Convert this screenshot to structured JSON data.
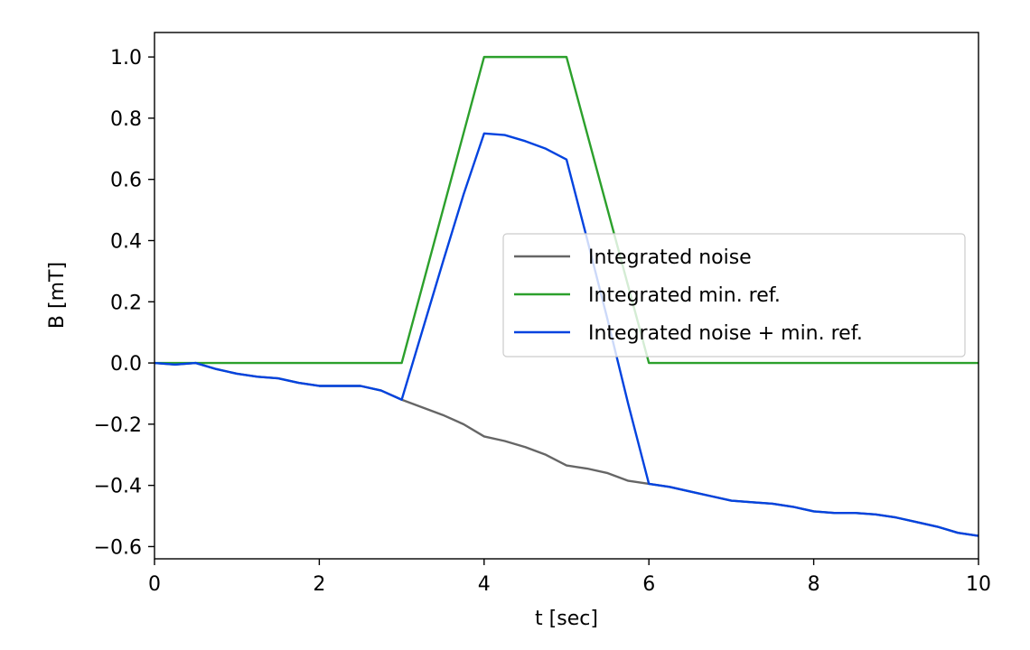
{
  "chart_data": {
    "type": "line",
    "title": "",
    "xlabel": "t [sec]",
    "ylabel": "B [mT]",
    "xlim": [
      0,
      10
    ],
    "ylim": [
      -0.64,
      1.08
    ],
    "xticks": [
      0,
      2,
      4,
      6,
      8,
      10
    ],
    "xtick_labels": [
      "0",
      "2",
      "4",
      "6",
      "8",
      "10"
    ],
    "yticks": [
      -0.6,
      -0.4,
      -0.2,
      0.0,
      0.2,
      0.4,
      0.6,
      0.8,
      1.0
    ],
    "ytick_labels": [
      "−0.6",
      "−0.4",
      "−0.2",
      "0.0",
      "0.2",
      "0.4",
      "0.6",
      "0.8",
      "1.0"
    ],
    "grid": false,
    "legend_position": "center-right",
    "series": [
      {
        "name": "Integrated noise",
        "color": "#666666",
        "x": [
          0,
          0.25,
          0.5,
          0.75,
          1.0,
          1.25,
          1.5,
          1.75,
          2.0,
          2.25,
          2.5,
          2.75,
          3.0,
          3.25,
          3.5,
          3.75,
          4.0,
          4.25,
          4.5,
          4.75,
          5.0,
          5.25,
          5.5,
          5.75,
          6.0,
          6.25,
          6.5,
          6.75,
          7.0,
          7.25,
          7.5,
          7.75,
          8.0,
          8.25,
          8.5,
          8.75,
          9.0,
          9.25,
          9.5,
          9.75,
          10.0
        ],
        "y": [
          0.0,
          -0.005,
          0.0,
          -0.02,
          -0.035,
          -0.045,
          -0.05,
          -0.065,
          -0.075,
          -0.075,
          -0.075,
          -0.09,
          -0.12,
          -0.145,
          -0.17,
          -0.2,
          -0.24,
          -0.255,
          -0.275,
          -0.3,
          -0.335,
          -0.345,
          -0.36,
          -0.385,
          -0.395,
          -0.405,
          -0.42,
          -0.435,
          -0.45,
          -0.455,
          -0.46,
          -0.47,
          -0.485,
          -0.49,
          -0.49,
          -0.495,
          -0.505,
          -0.52,
          -0.535,
          -0.555,
          -0.565
        ]
      },
      {
        "name": "Integrated min. ref.",
        "color": "#2ca02c",
        "x": [
          0,
          3.0,
          4.0,
          5.0,
          6.0,
          10.0
        ],
        "y": [
          0.0,
          0.0,
          1.0,
          1.0,
          0.0,
          0.0
        ]
      },
      {
        "name": "Integrated noise + min. ref.",
        "color": "#0343df",
        "x": [
          0,
          0.25,
          0.5,
          0.75,
          1.0,
          1.25,
          1.5,
          1.75,
          2.0,
          2.25,
          2.5,
          2.75,
          3.0,
          3.25,
          3.5,
          3.75,
          4.0,
          4.25,
          4.5,
          4.75,
          5.0,
          5.25,
          5.5,
          5.75,
          6.0,
          6.25,
          6.5,
          6.75,
          7.0,
          7.25,
          7.5,
          7.75,
          8.0,
          8.25,
          8.5,
          8.75,
          9.0,
          9.25,
          9.5,
          9.75,
          10.0
        ],
        "y": [
          0.0,
          -0.005,
          0.0,
          -0.02,
          -0.035,
          -0.045,
          -0.05,
          -0.065,
          -0.075,
          -0.075,
          -0.075,
          -0.09,
          -0.12,
          0.105,
          0.33,
          0.55,
          0.75,
          0.745,
          0.725,
          0.7,
          0.665,
          0.405,
          0.14,
          -0.135,
          -0.395,
          -0.405,
          -0.42,
          -0.435,
          -0.45,
          -0.455,
          -0.46,
          -0.47,
          -0.485,
          -0.49,
          -0.49,
          -0.495,
          -0.505,
          -0.52,
          -0.535,
          -0.555,
          -0.565
        ]
      }
    ]
  }
}
